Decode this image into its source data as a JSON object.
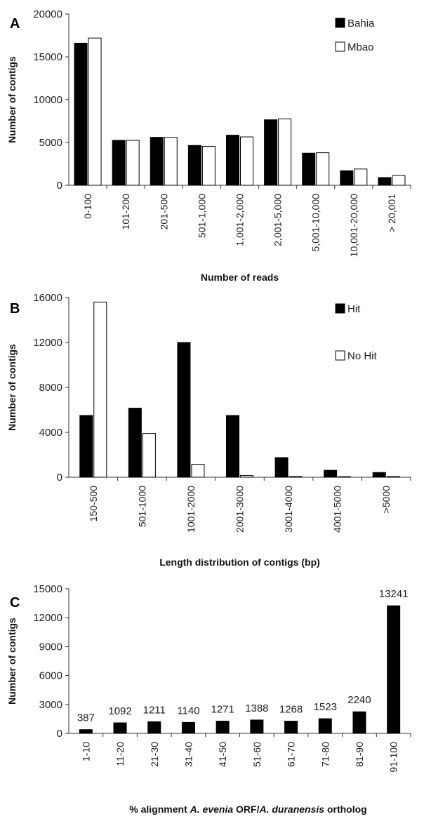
{
  "chart_data": [
    {
      "panel": "A",
      "type": "bar",
      "xlabel": "Number of reads",
      "ylabel": "Number of contigs",
      "ylim": [
        0,
        20000
      ],
      "yticks": [
        0,
        5000,
        10000,
        15000,
        20000
      ],
      "categories": [
        "0-100",
        "101-200",
        "201-500",
        "501-1,000",
        "1,001-2,000",
        "2,001-5,000",
        "5,001-10,000",
        "10,001-20,000",
        "> 20,001"
      ],
      "series": [
        {
          "name": "Bahia",
          "color": "#000000",
          "values": [
            16600,
            5250,
            5600,
            4650,
            5850,
            7650,
            3750,
            1700,
            900
          ]
        },
        {
          "name": "Mbao",
          "color": "#ffffff",
          "values": [
            17200,
            5250,
            5600,
            4550,
            5650,
            7750,
            3800,
            1900,
            1150
          ]
        }
      ],
      "legend": "top-right"
    },
    {
      "panel": "B",
      "type": "bar",
      "xlabel": "Length distribution  of contigs (bp)",
      "ylabel": "Number  of contigs",
      "ylim": [
        0,
        16000
      ],
      "yticks": [
        0,
        4000,
        8000,
        12000,
        16000
      ],
      "categories": [
        "150-500",
        "501-1000",
        "1001-2000",
        "2001-3000",
        "3001-4000",
        "4001-5000",
        ">5000"
      ],
      "series": [
        {
          "name": "Hit",
          "color": "#000000",
          "values": [
            5500,
            6150,
            12000,
            5500,
            1750,
            620,
            420
          ]
        },
        {
          "name": "No Hit",
          "color": "#ffffff",
          "values": [
            15600,
            3900,
            1150,
            150,
            70,
            50,
            60
          ]
        }
      ],
      "legend": "top-right"
    },
    {
      "panel": "C",
      "type": "bar",
      "xlabel_parts": [
        {
          "text": "% alignment ",
          "italic": false
        },
        {
          "text": "A. evenia",
          "italic": true
        },
        {
          "text": " ORF/",
          "italic": false
        },
        {
          "text": "A. duranensis",
          "italic": true
        },
        {
          "text": " ortholog",
          "italic": false
        }
      ],
      "ylabel": "Number of contigs",
      "ylim": [
        0,
        15000
      ],
      "yticks": [
        0,
        3000,
        6000,
        9000,
        12000,
        15000
      ],
      "categories": [
        "1-10",
        "11-20",
        "21-30",
        "31-40",
        "41-50",
        "51-60",
        "61-70",
        "71-80",
        "81-90",
        "91-100"
      ],
      "series": [
        {
          "color": "#000000",
          "values": [
            387,
            1092,
            1211,
            1140,
            1271,
            1388,
            1268,
            1523,
            2240,
            13241
          ]
        }
      ],
      "data_labels": [
        "387",
        "1092",
        "1211",
        "1140",
        "1271",
        "1388",
        "1268",
        "1523",
        "2240",
        "13241"
      ]
    }
  ]
}
